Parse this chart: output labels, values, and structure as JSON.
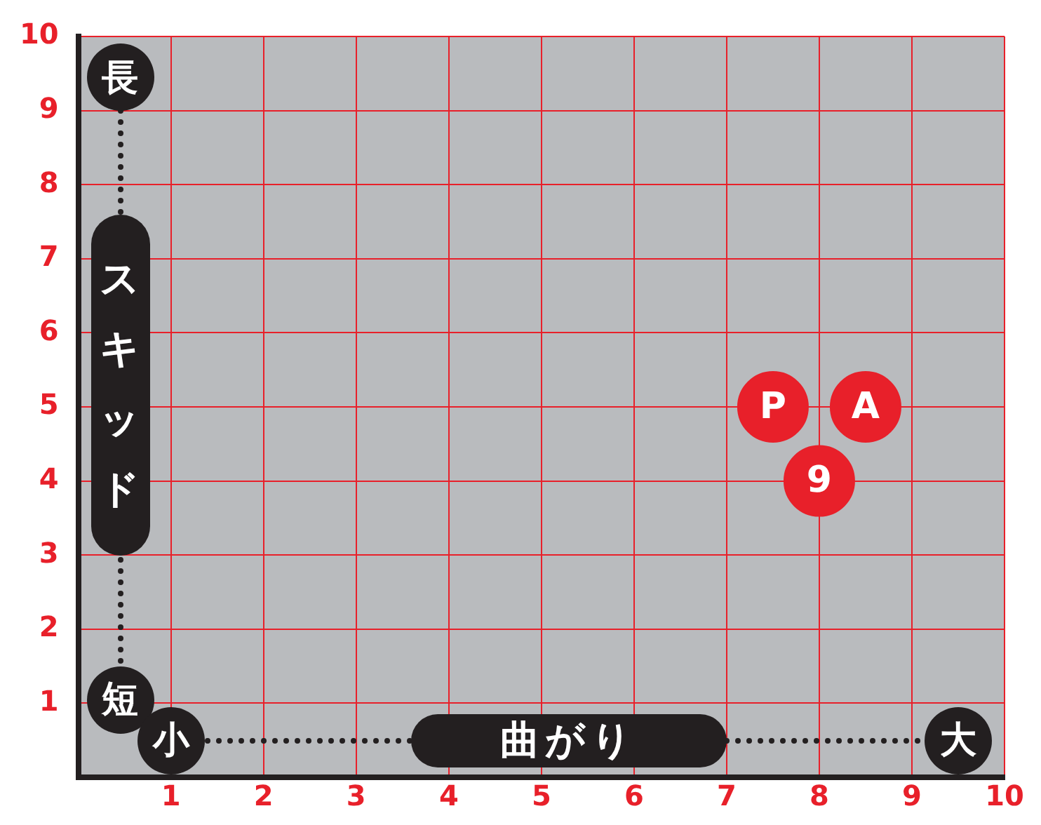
{
  "chart_data": {
    "type": "scatter",
    "xlabel": "曲がり",
    "ylabel": "スキッド",
    "annotations": [
      "長",
      "短",
      "小",
      "大"
    ],
    "series": [
      {
        "name": "P",
        "color": "#e8202a",
        "x": [
          7.5
        ],
        "values": [
          5
        ]
      },
      {
        "name": "A",
        "color": "#e8202a",
        "x": [
          8.5
        ],
        "values": [
          5
        ]
      },
      {
        "name": "9",
        "color": "#e8202a",
        "x": [
          8
        ],
        "values": [
          4
        ]
      }
    ],
    "xlim": [
      0,
      10
    ],
    "xticks": [
      1,
      2,
      3,
      4,
      5,
      6,
      7,
      8,
      9,
      10
    ],
    "ylim": [
      0,
      10
    ],
    "yticks": [
      1,
      2,
      3,
      4,
      5,
      6,
      7,
      8,
      9,
      10
    ],
    "grid": true,
    "legend": false,
    "marker": "circle"
  }
}
